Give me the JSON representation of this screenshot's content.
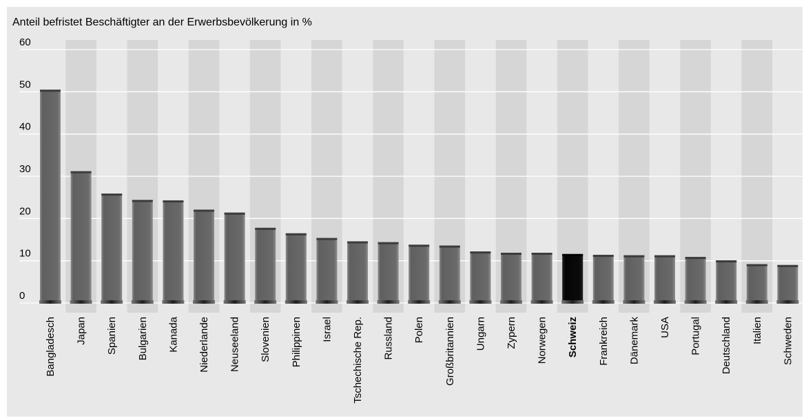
{
  "chart_data": {
    "type": "bar",
    "title": "Anteil befristet Beschäftigter an der Erwerbsbevölkerung in %",
    "xlabel": "",
    "ylabel": "",
    "ylim": [
      0,
      60
    ],
    "yticks": [
      0,
      10,
      20,
      30,
      40,
      50,
      60
    ],
    "grid": true,
    "highlight_category": "Schweiz",
    "colors": {
      "bar": "#656565",
      "highlight": "#0b0b0b",
      "band": "#d6d6d6",
      "background": "#e8e8e8",
      "grid": "#ffffff"
    },
    "categories": [
      "Bangladesch",
      "Japan",
      "Spanien",
      "Bulgarien",
      "Kanada",
      "Niederlande",
      "Neuseeland",
      "Slovenien",
      "Philippinen",
      "Israel",
      "Tschechische Rep.",
      "Russland",
      "Polen",
      "Großbritannien",
      "Ungarn",
      "Zypern",
      "Norwegen",
      "Schweiz",
      "Frankreich",
      "Dänemark",
      "USA",
      "Portugal",
      "Deutschland",
      "Italien",
      "Schweden"
    ],
    "values": [
      50.5,
      31.2,
      25.9,
      24.4,
      24.3,
      22.1,
      21.4,
      17.8,
      16.5,
      15.4,
      14.6,
      14.4,
      13.8,
      13.6,
      12.2,
      11.9,
      11.9,
      11.6,
      11.4,
      11.3,
      11.3,
      10.9,
      10.1,
      9.2,
      9.0
    ]
  }
}
